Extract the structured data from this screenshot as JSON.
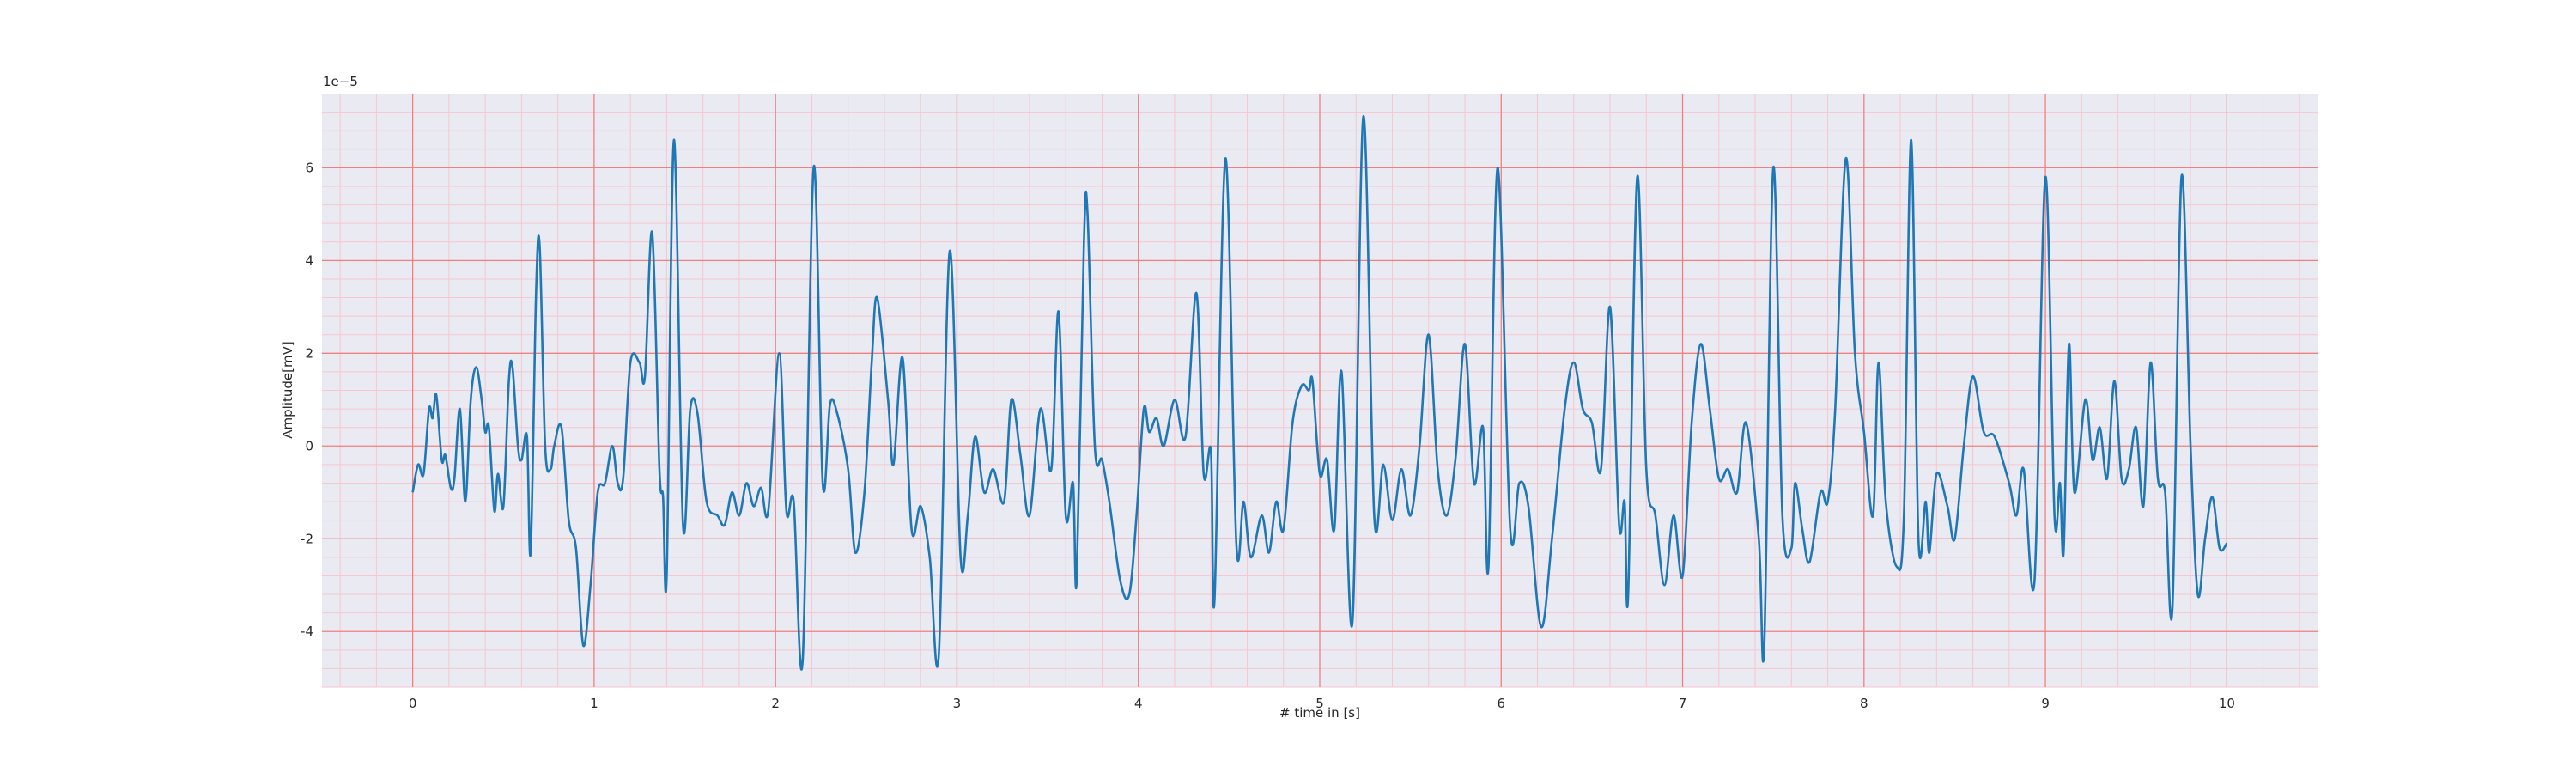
{
  "chart_data": {
    "type": "line",
    "xlabel": "# time in [s]",
    "ylabel": "Amplitude[mV]",
    "offset_text": "1e−5",
    "color": "#1f77b4",
    "background": "#eaeaf2",
    "grid": true,
    "grid_color": "#f08080",
    "minor_grid": {
      "color": "#f7c6cf",
      "divisions": 5
    },
    "xlim": [
      -0.5,
      10.5
    ],
    "ylim": [
      -5.2,
      7.6
    ],
    "xticks": [
      0,
      1,
      2,
      3,
      4,
      5,
      6,
      7,
      8,
      9,
      10
    ],
    "yticks": [
      -4,
      -2,
      0,
      2,
      4,
      6
    ],
    "x": [
      0.0,
      0.03,
      0.06,
      0.09,
      0.11,
      0.13,
      0.16,
      0.18,
      0.21,
      0.23,
      0.26,
      0.29,
      0.32,
      0.35,
      0.38,
      0.4,
      0.42,
      0.45,
      0.47,
      0.5,
      0.53,
      0.55,
      0.58,
      0.6,
      0.63,
      0.65,
      0.68,
      0.7,
      0.73,
      0.76,
      0.78,
      0.82,
      0.86,
      0.9,
      0.94,
      0.98,
      1.02,
      1.06,
      1.1,
      1.13,
      1.16,
      1.2,
      1.25,
      1.28,
      1.32,
      1.36,
      1.38,
      1.4,
      1.44,
      1.49,
      1.53,
      1.57,
      1.62,
      1.68,
      1.72,
      1.76,
      1.8,
      1.84,
      1.88,
      1.92,
      1.96,
      2.02,
      2.06,
      2.1,
      2.15,
      2.21,
      2.26,
      2.3,
      2.34,
      2.4,
      2.44,
      2.49,
      2.53,
      2.56,
      2.62,
      2.65,
      2.7,
      2.75,
      2.8,
      2.85,
      2.9,
      2.96,
      3.02,
      3.06,
      3.1,
      3.15,
      3.2,
      3.26,
      3.3,
      3.35,
      3.4,
      3.46,
      3.52,
      3.56,
      3.6,
      3.64,
      3.66,
      3.7,
      3.72,
      3.76,
      3.8,
      3.84,
      3.9,
      3.95,
      3.99,
      4.03,
      4.06,
      4.1,
      4.14,
      4.2,
      4.26,
      4.32,
      4.36,
      4.4,
      4.42,
      4.48,
      4.54,
      4.58,
      4.62,
      4.68,
      4.72,
      4.76,
      4.8,
      4.85,
      4.9,
      4.94,
      4.96,
      5.0,
      5.04,
      5.08,
      5.12,
      5.18,
      5.24,
      5.3,
      5.35,
      5.4,
      5.45,
      5.5,
      5.55,
      5.6,
      5.65,
      5.7,
      5.75,
      5.8,
      5.85,
      5.9,
      5.93,
      5.98,
      6.05,
      6.1,
      6.15,
      6.22,
      6.28,
      6.35,
      6.4,
      6.45,
      6.5,
      6.55,
      6.6,
      6.65,
      6.68,
      6.7,
      6.75,
      6.8,
      6.85,
      6.9,
      6.95,
      7.0,
      7.05,
      7.1,
      7.15,
      7.2,
      7.25,
      7.3,
      7.35,
      7.42,
      7.45,
      7.5,
      7.55,
      7.6,
      7.62,
      7.66,
      7.7,
      7.76,
      7.8,
      7.84,
      7.9,
      7.95,
      8.0,
      8.05,
      8.08,
      8.12,
      8.18,
      8.22,
      8.26,
      8.3,
      8.34,
      8.36,
      8.4,
      8.46,
      8.5,
      8.55,
      8.6,
      8.66,
      8.72,
      8.8,
      8.84,
      8.88,
      8.94,
      9.0,
      9.05,
      9.08,
      9.1,
      9.13,
      9.16,
      9.22,
      9.26,
      9.3,
      9.34,
      9.38,
      9.42,
      9.46,
      9.5,
      9.54,
      9.58,
      9.62,
      9.66,
      9.7,
      9.75,
      9.8,
      9.84,
      9.88,
      9.92,
      9.96,
      10.0
    ],
    "values": [
      -1.0,
      -0.4,
      -0.6,
      0.8,
      0.6,
      1.1,
      -0.3,
      -0.2,
      -0.9,
      -0.7,
      0.8,
      -1.2,
      1.0,
      1.7,
      1.0,
      0.3,
      0.4,
      -1.4,
      -0.6,
      -1.3,
      1.4,
      1.7,
      0.0,
      -0.3,
      0.2,
      -2.3,
      3.3,
      4.3,
      0.0,
      -0.5,
      0.0,
      0.4,
      -1.6,
      -2.2,
      -4.3,
      -3.0,
      -1.0,
      -0.8,
      0.0,
      -0.8,
      -0.7,
      1.8,
      1.8,
      1.5,
      4.6,
      -0.5,
      -1.1,
      -2.8,
      6.6,
      -1.7,
      0.8,
      0.7,
      -1.2,
      -1.5,
      -1.7,
      -1.0,
      -1.5,
      -0.8,
      -1.3,
      -0.9,
      -1.4,
      2.0,
      -1.4,
      -1.2,
      -4.6,
      6.0,
      -0.8,
      0.9,
      0.7,
      -0.5,
      -2.3,
      -1.0,
      1.8,
      3.2,
      1.0,
      -0.4,
      1.9,
      -1.8,
      -1.3,
      -2.4,
      -4.5,
      4.2,
      -2.4,
      -1.5,
      0.2,
      -1.0,
      -0.5,
      -1.2,
      1.0,
      -0.2,
      -1.5,
      0.8,
      -0.5,
      2.9,
      -1.5,
      -0.8,
      -2.9,
      4.4,
      5.0,
      0.0,
      -0.3,
      -1.2,
      -2.9,
      -3.2,
      -1.5,
      0.8,
      0.3,
      0.6,
      0.0,
      1.0,
      0.2,
      3.3,
      -0.6,
      -0.1,
      -3.3,
      6.2,
      -2.1,
      -1.2,
      -2.4,
      -1.5,
      -2.3,
      -1.2,
      -1.8,
      0.5,
      1.3,
      1.2,
      1.4,
      -0.6,
      -0.3,
      -1.8,
      1.6,
      -3.8,
      7.1,
      -1.5,
      -0.4,
      -1.6,
      -0.5,
      -1.5,
      0.0,
      2.4,
      -0.5,
      -1.5,
      -0.2,
      2.2,
      -0.8,
      0.4,
      -2.6,
      6.0,
      -1.8,
      -0.8,
      -1.3,
      -3.9,
      -2.0,
      0.8,
      1.8,
      0.8,
      0.5,
      -0.5,
      3.0,
      -1.7,
      -1.2,
      -3.2,
      5.8,
      -0.5,
      -1.5,
      -3.0,
      -1.5,
      -2.8,
      0.5,
      2.2,
      0.8,
      -0.7,
      -0.5,
      -1.0,
      0.5,
      -2.0,
      -4.3,
      6.0,
      -1.5,
      -2.2,
      -0.8,
      -1.8,
      -2.5,
      -1.0,
      -1.2,
      0.7,
      6.2,
      2.0,
      0.3,
      -1.5,
      1.8,
      -1.2,
      -2.6,
      -1.5,
      6.6,
      -2.0,
      -1.2,
      -2.3,
      -0.6,
      -1.3,
      -2.0,
      0.0,
      1.5,
      0.3,
      0.2,
      -0.8,
      -1.5,
      -0.5,
      -2.9,
      5.8,
      -1.5,
      -0.8,
      -2.3,
      2.2,
      -1.0,
      1.0,
      -0.3,
      0.4,
      -0.7,
      1.4,
      -0.7,
      -0.5,
      0.4,
      -1.3,
      1.8,
      -0.7,
      -1.0,
      -3.5,
      5.8,
      0.0,
      -3.2,
      -2.0,
      -1.1,
      -2.2,
      -2.1
    ]
  }
}
